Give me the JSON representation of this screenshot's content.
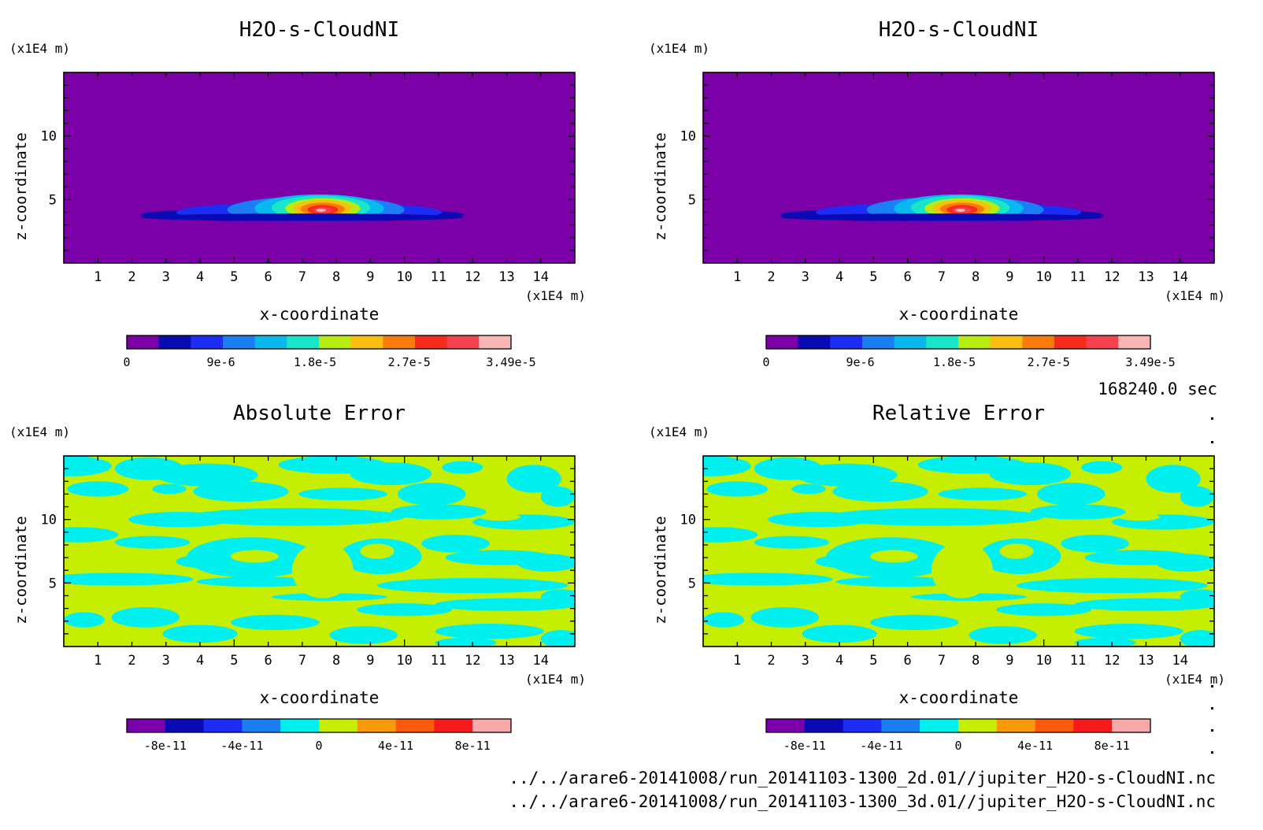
{
  "time_label": "168240.0 sec",
  "footer": {
    "file_2d": "../../arare6-20141008/run_20141103-1300_2d.01//jupiter_H2O-s-CloudNI.nc",
    "file_3d": "../../arare6-20141008/run_20141103-1300_3d.01//jupiter_H2O-s-CloudNI.nc"
  },
  "chart_data": [
    {
      "type": "heatmap",
      "title": "H2O-s-CloudNI",
      "xlabel": "x-coordinate",
      "ylabel": "z-coordinate",
      "x_unit": "(x1E4 m)",
      "y_unit": "(x1E4 m)",
      "xlim": [
        0,
        15
      ],
      "ylim": [
        0,
        15
      ],
      "x_ticks": [
        "1",
        "2",
        "3",
        "4",
        "5",
        "6",
        "7",
        "8",
        "9",
        "10",
        "11",
        "12",
        "13",
        "14"
      ],
      "y_ticks": [
        "5",
        "10"
      ],
      "field": "cloud",
      "colorbar": {
        "colors": [
          "#7b00a8",
          "#0a0ab4",
          "#1c2ef5",
          "#1c7ef5",
          "#08b8ee",
          "#18e6c8",
          "#b6ec10",
          "#fabe10",
          "#fa7a0a",
          "#f72b1b",
          "#f7414f",
          "#f9b6b6"
        ],
        "labels": [
          "0",
          "9e-6",
          "1.8e-5",
          "2.7e-5",
          "3.49e-5"
        ]
      }
    },
    {
      "type": "heatmap",
      "title": "H2O-s-CloudNI",
      "xlabel": "x-coordinate",
      "ylabel": "z-coordinate",
      "x_unit": "(x1E4 m)",
      "y_unit": "(x1E4 m)",
      "xlim": [
        0,
        15
      ],
      "ylim": [
        0,
        15
      ],
      "x_ticks": [
        "1",
        "2",
        "3",
        "4",
        "5",
        "6",
        "7",
        "8",
        "9",
        "10",
        "11",
        "12",
        "13",
        "14"
      ],
      "y_ticks": [
        "5",
        "10"
      ],
      "field": "cloud",
      "colorbar": {
        "colors": [
          "#7b00a8",
          "#0a0ab4",
          "#1c2ef5",
          "#1c7ef5",
          "#08b8ee",
          "#18e6c8",
          "#b6ec10",
          "#fabe10",
          "#fa7a0a",
          "#f72b1b",
          "#f7414f",
          "#f9b6b6"
        ],
        "labels": [
          "0",
          "9e-6",
          "1.8e-5",
          "2.7e-5",
          "3.49e-5"
        ]
      }
    },
    {
      "type": "heatmap",
      "title": "Absolute Error",
      "xlabel": "x-coordinate",
      "ylabel": "z-coordinate",
      "x_unit": "(x1E4 m)",
      "y_unit": "(x1E4 m)",
      "xlim": [
        0,
        15
      ],
      "ylim": [
        0,
        15
      ],
      "x_ticks": [
        "1",
        "2",
        "3",
        "4",
        "5",
        "6",
        "7",
        "8",
        "9",
        "10",
        "11",
        "12",
        "13",
        "14"
      ],
      "y_ticks": [
        "5",
        "10"
      ],
      "field": "error",
      "colorbar": {
        "colors": [
          "#7b00a8",
          "#0a0ab4",
          "#1c2ef5",
          "#1c7ef5",
          "#00f0f0",
          "#c6ee00",
          "#fa9a0a",
          "#fa5a0a",
          "#f71b1b",
          "#f9a8a8"
        ],
        "labels": [
          "-8e-11",
          "-4e-11",
          "0",
          "4e-11",
          "8e-11"
        ]
      }
    },
    {
      "type": "heatmap",
      "title": "Relative Error",
      "xlabel": "x-coordinate",
      "ylabel": "z-coordinate",
      "x_unit": "(x1E4 m)",
      "y_unit": "(x1E4 m)",
      "xlim": [
        0,
        15
      ],
      "ylim": [
        0,
        15
      ],
      "x_ticks": [
        "1",
        "2",
        "3",
        "4",
        "5",
        "6",
        "7",
        "8",
        "9",
        "10",
        "11",
        "12",
        "13",
        "14"
      ],
      "y_ticks": [
        "5",
        "10"
      ],
      "field": "error",
      "colorbar": {
        "colors": [
          "#7b00a8",
          "#0a0ab4",
          "#1c2ef5",
          "#1c7ef5",
          "#00f0f0",
          "#c6ee00",
          "#fa9a0a",
          "#fa5a0a",
          "#f71b1b",
          "#f9a8a8"
        ],
        "labels": [
          "-8e-11",
          "-4e-11",
          "0",
          "4e-11",
          "8e-11"
        ]
      }
    }
  ]
}
